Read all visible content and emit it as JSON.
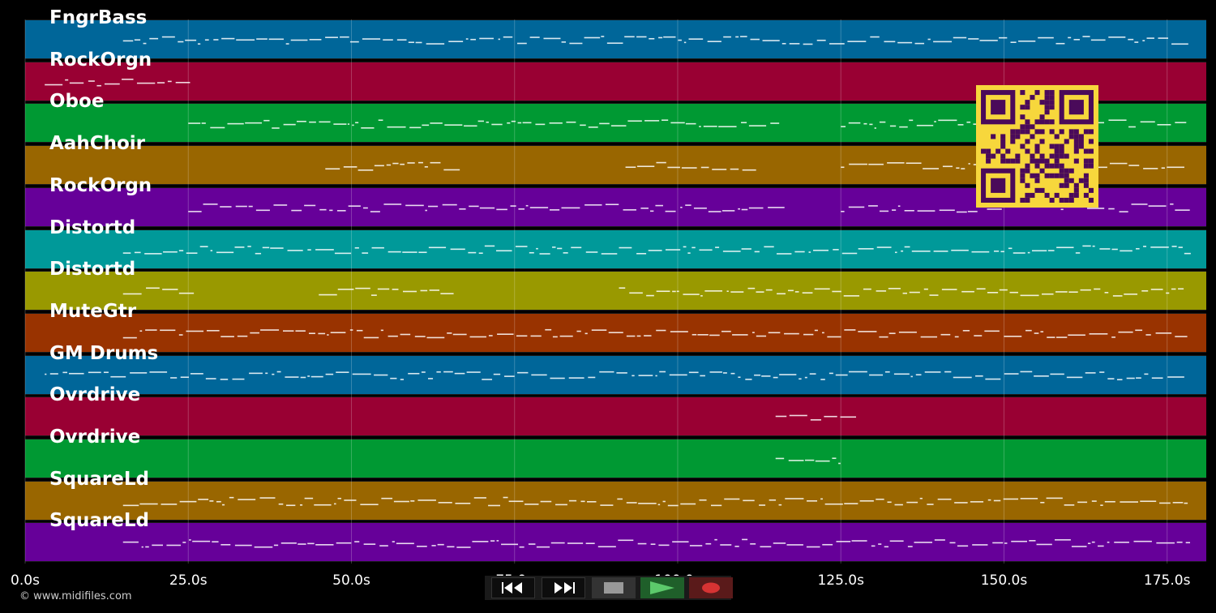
{
  "tracks": [
    {
      "name": "FngrBass",
      "color": "#006699"
    },
    {
      "name": "RockOrgn",
      "color": "#990033"
    },
    {
      "name": "Oboe",
      "color": "#009933"
    },
    {
      "name": "AahChoir",
      "color": "#996600"
    },
    {
      "name": "RockOrgn",
      "color": "#660099"
    },
    {
      "name": "Distortd",
      "color": "#009999"
    },
    {
      "name": "Distortd",
      "color": "#999900"
    },
    {
      "name": "MuteGtr",
      "color": "#993300"
    },
    {
      "name": "GM Drums",
      "color": "#006699"
    },
    {
      "name": "Ovrdrive",
      "color": "#990033"
    },
    {
      "name": "Ovrdrive",
      "color": "#009933"
    },
    {
      "name": "SquareLd",
      "color": "#996600"
    },
    {
      "name": "SquareLd",
      "color": "#660099"
    }
  ],
  "timeline": {
    "ticks": [
      "0.0s",
      "25.0s",
      "50.0s",
      "75.0s",
      "100.0s",
      "125.0s",
      "150.0s",
      "175.0s"
    ],
    "max_seconds": 181
  },
  "transport": {
    "rewind_icon": "rewind-icon",
    "forward_icon": "fast-forward-icon",
    "stop_icon": "stop-icon",
    "play_icon": "play-icon",
    "record_icon": "record-icon"
  },
  "copyright": "© www.midifiles.com"
}
